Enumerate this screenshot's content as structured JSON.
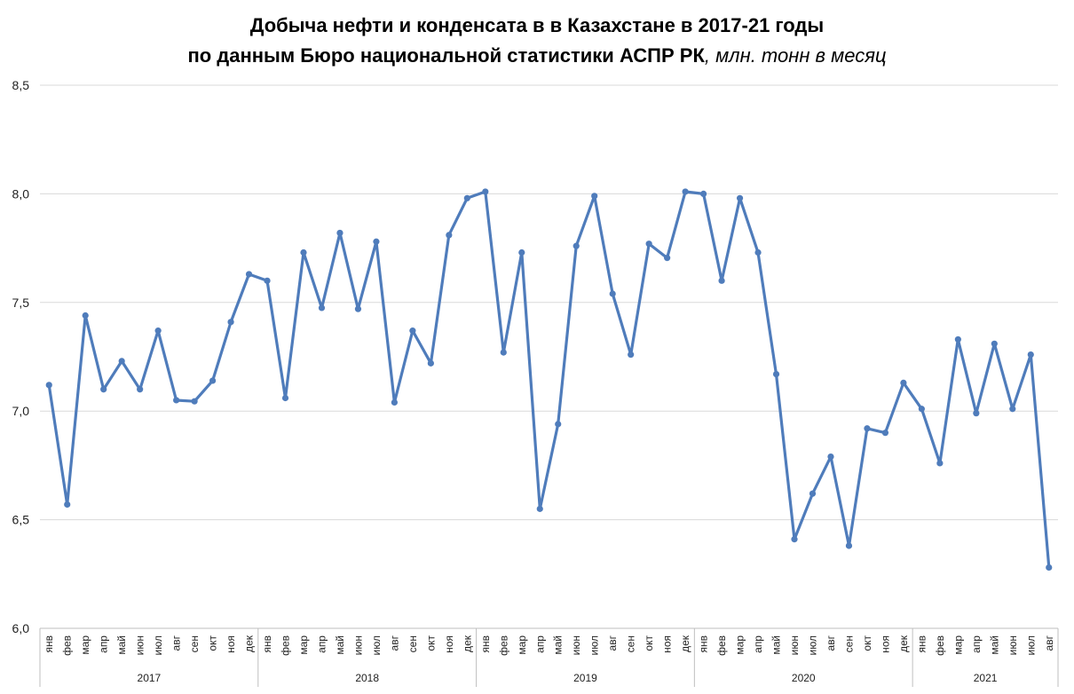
{
  "chart_data": {
    "type": "line",
    "title_line1": "Добыча нефти и конденсата в в Казахстане в 2017-21 годы",
    "title_line2": "по данным Бюро национальной статистики АСПР РК",
    "title_unit": ", млн. тонн в месяц",
    "ylim": [
      6.0,
      8.5
    ],
    "yticks": [
      "6,0",
      "6,5",
      "7,0",
      "7,5",
      "8,0",
      "8,5"
    ],
    "grid": true,
    "color": "#4f7cbb",
    "years": [
      {
        "label": "2017",
        "months": [
          "янв",
          "фев",
          "мар",
          "апр",
          "май",
          "июн",
          "июл",
          "авг",
          "сен",
          "окт",
          "ноя",
          "дек"
        ]
      },
      {
        "label": "2018",
        "months": [
          "янв",
          "фев",
          "мар",
          "апр",
          "май",
          "июн",
          "июл",
          "авг",
          "сен",
          "окт",
          "ноя",
          "дек"
        ]
      },
      {
        "label": "2019",
        "months": [
          "янв",
          "фев",
          "мар",
          "апр",
          "май",
          "июн",
          "июл",
          "авг",
          "сен",
          "окт",
          "ноя",
          "дек"
        ]
      },
      {
        "label": "2020",
        "months": [
          "янв",
          "фев",
          "мар",
          "апр",
          "май",
          "июн",
          "июл",
          "авг",
          "сен",
          "окт",
          "ноя",
          "дек"
        ]
      },
      {
        "label": "2021",
        "months": [
          "янв",
          "фев",
          "мар",
          "апр",
          "май",
          "июн",
          "июл",
          "авг"
        ]
      }
    ],
    "values": [
      7.12,
      6.57,
      7.44,
      7.1,
      7.23,
      7.1,
      7.37,
      7.05,
      7.045,
      7.14,
      7.41,
      7.63,
      7.6,
      7.06,
      7.73,
      7.475,
      7.82,
      7.47,
      7.78,
      7.04,
      7.37,
      7.22,
      7.81,
      7.98,
      8.01,
      7.27,
      7.73,
      6.55,
      6.94,
      7.76,
      7.99,
      7.54,
      7.26,
      7.77,
      7.705,
      8.01,
      8.0,
      7.6,
      7.98,
      7.73,
      7.17,
      6.41,
      6.62,
      6.79,
      6.38,
      6.92,
      6.9,
      7.13,
      7.01,
      6.76,
      7.33,
      6.99,
      7.31,
      7.01,
      7.26,
      6.28
    ]
  }
}
